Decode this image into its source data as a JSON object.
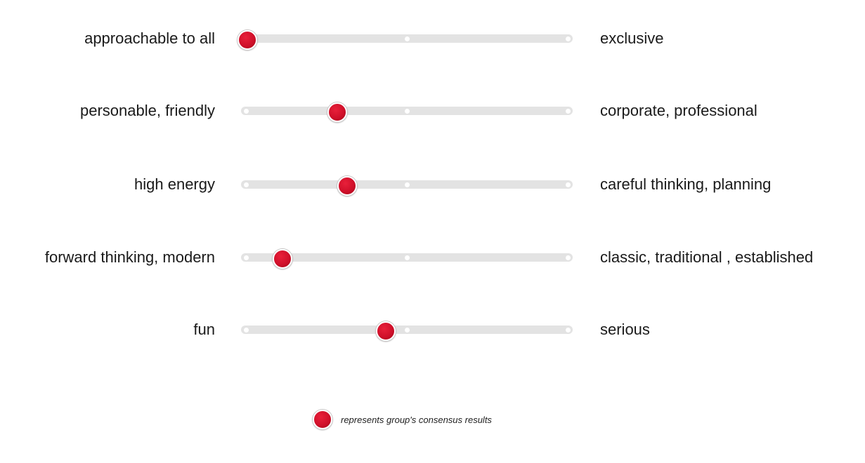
{
  "chart_data": {
    "type": "semantic-differential",
    "scale": [
      0,
      1
    ],
    "rows": [
      {
        "left_label": "approachable to all",
        "right_label": "exclusive",
        "value": 0.0
      },
      {
        "left_label": "personable, friendly",
        "right_label": "corporate, professional",
        "value": 0.28
      },
      {
        "left_label": "high energy",
        "right_label": "careful thinking, planning",
        "value": 0.31
      },
      {
        "left_label": "forward thinking, modern",
        "right_label": "classic, traditional , established",
        "value": 0.11
      },
      {
        "left_label": "fun",
        "right_label": "serious",
        "value": 0.43
      }
    ],
    "marker_color": "#d0102a",
    "track_color": "#e3e3e3"
  },
  "legend": {
    "text": "represents group's consensus results"
  }
}
